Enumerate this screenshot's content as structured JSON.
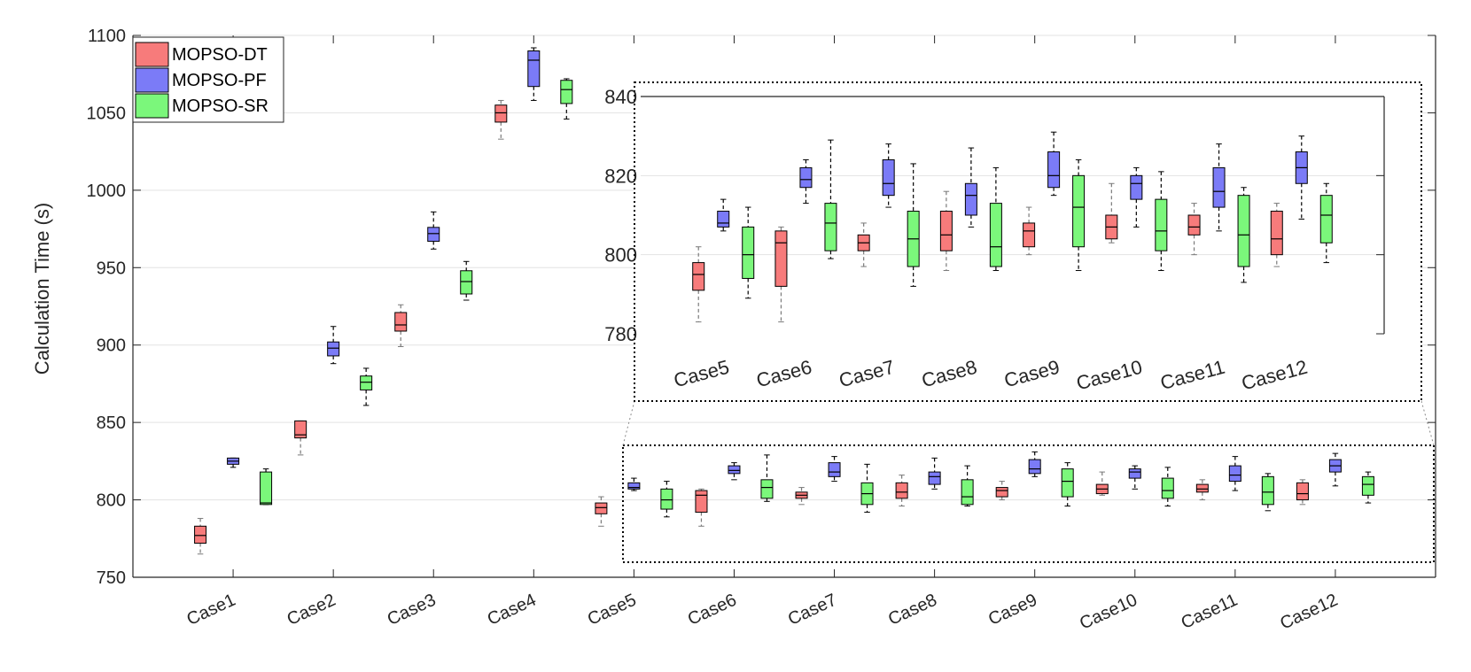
{
  "chart_data": [
    {
      "panel": "main",
      "type": "boxplot",
      "title": "",
      "xlabel": "",
      "ylabel": "Calculation Time (s)",
      "ylim": [
        750,
        1100
      ],
      "yticks": [
        "750",
        "800",
        "850",
        "900",
        "950",
        "1000",
        "1050",
        "1100"
      ],
      "grid": "horizontal",
      "legend": {
        "position": "top-left",
        "entries": [
          "MOPSO-DT",
          "MOPSO-PF",
          "MOPSO-SR"
        ]
      },
      "categories": [
        "Case1",
        "Case2",
        "Case3",
        "Case4",
        "Case5",
        "Case6",
        "Case7",
        "Case8",
        "Case9",
        "Case10",
        "Case11",
        "Case12"
      ],
      "series": [
        {
          "name": "MOPSO-DT",
          "color": "#f77b7b",
          "boxes": [
            {
              "min": 765,
              "q1": 772,
              "median": 777,
              "q3": 783,
              "max": 788
            },
            {
              "min": 829,
              "q1": 840,
              "median": 842,
              "q3": 851,
              "max": 851
            },
            {
              "min": 899,
              "q1": 909,
              "median": 913,
              "q3": 921,
              "max": 926
            },
            {
              "min": 1033,
              "q1": 1044,
              "median": 1050,
              "q3": 1055,
              "max": 1058
            },
            {
              "min": 783,
              "q1": 791,
              "median": 795,
              "q3": 798,
              "max": 802
            },
            {
              "min": 783,
              "q1": 792,
              "median": 803,
              "q3": 806,
              "max": 807
            },
            {
              "min": 797,
              "q1": 801,
              "median": 803,
              "q3": 805,
              "max": 808
            },
            {
              "min": 796,
              "q1": 801,
              "median": 805,
              "q3": 811,
              "max": 816
            },
            {
              "min": 800,
              "q1": 802,
              "median": 806,
              "q3": 808,
              "max": 812
            },
            {
              "min": 803,
              "q1": 804,
              "median": 807,
              "q3": 810,
              "max": 818
            },
            {
              "min": 800,
              "q1": 805,
              "median": 807,
              "q3": 810,
              "max": 813
            },
            {
              "min": 797,
              "q1": 800,
              "median": 804,
              "q3": 811,
              "max": 813
            }
          ]
        },
        {
          "name": "MOPSO-PF",
          "color": "#7b7bf7",
          "boxes": [
            {
              "min": 821,
              "q1": 823,
              "median": 825,
              "q3": 827,
              "max": 827
            },
            {
              "min": 888,
              "q1": 893,
              "median": 898,
              "q3": 902,
              "max": 912
            },
            {
              "min": 962,
              "q1": 967,
              "median": 972,
              "q3": 976,
              "max": 986
            },
            {
              "min": 1058,
              "q1": 1067,
              "median": 1084,
              "q3": 1090,
              "max": 1092
            },
            {
              "min": 806,
              "q1": 807,
              "median": 808,
              "q3": 811,
              "max": 814
            },
            {
              "min": 813,
              "q1": 817,
              "median": 819,
              "q3": 822,
              "max": 824
            },
            {
              "min": 812,
              "q1": 815,
              "median": 818,
              "q3": 824,
              "max": 828
            },
            {
              "min": 807,
              "q1": 810,
              "median": 815,
              "q3": 818,
              "max": 827
            },
            {
              "min": 815,
              "q1": 817,
              "median": 820,
              "q3": 826,
              "max": 831
            },
            {
              "min": 807,
              "q1": 814,
              "median": 818,
              "q3": 820,
              "max": 822
            },
            {
              "min": 806,
              "q1": 812,
              "median": 816,
              "q3": 822,
              "max": 828
            },
            {
              "min": 809,
              "q1": 818,
              "median": 822,
              "q3": 826,
              "max": 830
            }
          ]
        },
        {
          "name": "MOPSO-SR",
          "color": "#7bf77b",
          "boxes": [
            {
              "min": 797,
              "q1": 797,
              "median": 798,
              "q3": 818,
              "max": 820
            },
            {
              "min": 861,
              "q1": 871,
              "median": 876,
              "q3": 880,
              "max": 885
            },
            {
              "min": 929,
              "q1": 933,
              "median": 941,
              "q3": 948,
              "max": 954
            },
            {
              "min": 1046,
              "q1": 1056,
              "median": 1065,
              "q3": 1071,
              "max": 1072
            },
            {
              "min": 789,
              "q1": 794,
              "median": 800,
              "q3": 807,
              "max": 812
            },
            {
              "min": 799,
              "q1": 801,
              "median": 808,
              "q3": 813,
              "max": 829
            },
            {
              "min": 792,
              "q1": 797,
              "median": 804,
              "q3": 811,
              "max": 823
            },
            {
              "min": 796,
              "q1": 797,
              "median": 802,
              "q3": 813,
              "max": 822
            },
            {
              "min": 796,
              "q1": 802,
              "median": 812,
              "q3": 820,
              "max": 824
            },
            {
              "min": 796,
              "q1": 801,
              "median": 806,
              "q3": 814,
              "max": 821
            },
            {
              "min": 793,
              "q1": 797,
              "median": 805,
              "q3": 815,
              "max": 817
            },
            {
              "min": 798,
              "q1": 803,
              "median": 810,
              "q3": 815,
              "max": 818
            }
          ]
        }
      ]
    },
    {
      "panel": "inset",
      "type": "boxplot",
      "title": "",
      "note": "Zoomed view of Case5-Case12",
      "ylim": [
        780,
        840
      ],
      "yticks": [
        "780",
        "800",
        "820",
        "840"
      ],
      "grid": "horizontal",
      "categories": [
        "Case5",
        "Case6",
        "Case7",
        "Case8",
        "Case9",
        "Case10",
        "Case11",
        "Case12"
      ],
      "series_from_main": [
        "MOPSO-DT",
        "MOPSO-PF",
        "MOPSO-SR"
      ],
      "category_range": [
        4,
        12
      ]
    }
  ]
}
